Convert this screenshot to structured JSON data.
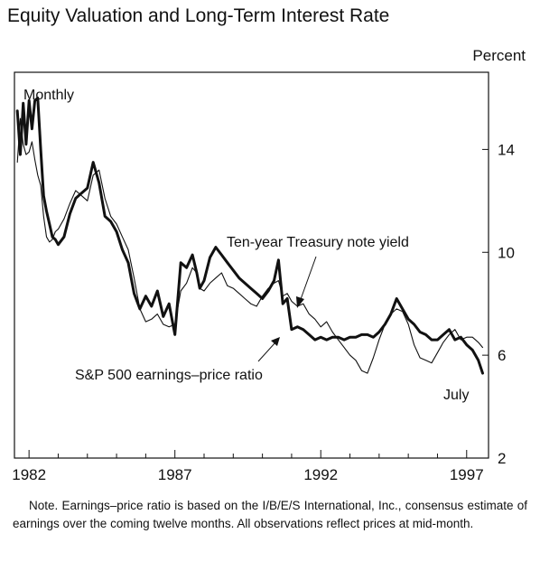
{
  "chart_data": {
    "type": "line",
    "title": "Equity Valuation and Long-Term Interest Rate",
    "unit_label": "Percent",
    "frequency_label": "Monthly",
    "x_ticks": [
      "1982",
      "1987",
      "1992",
      "1997"
    ],
    "xlim": [
      1981.5,
      1997.75
    ],
    "ylim": [
      2,
      17
    ],
    "y_ticks": [
      2,
      6,
      10,
      14
    ],
    "y_axis_position": "right",
    "grid": false,
    "legend": "inline annotations",
    "annotations": {
      "treasury": "Ten-year Treasury note yield",
      "ep_ratio": "S&P 500 earnings–price ratio",
      "end": "July"
    },
    "series": [
      {
        "name": "S&P 500 earnings–price ratio",
        "stroke": "thick",
        "x": [
          1981.6,
          1981.7,
          1981.8,
          1981.9,
          1982.0,
          1982.1,
          1982.2,
          1982.3,
          1982.4,
          1982.5,
          1982.6,
          1982.7,
          1982.8,
          1982.9,
          1983.0,
          1983.2,
          1983.4,
          1983.6,
          1983.8,
          1984.0,
          1984.2,
          1984.4,
          1984.6,
          1984.8,
          1985.0,
          1985.2,
          1985.4,
          1985.6,
          1985.8,
          1986.0,
          1986.2,
          1986.4,
          1986.6,
          1986.8,
          1987.0,
          1987.2,
          1987.4,
          1987.6,
          1987.75,
          1987.85,
          1988.0,
          1988.2,
          1988.4,
          1988.6,
          1988.8,
          1989.0,
          1989.2,
          1989.4,
          1989.6,
          1989.8,
          1990.0,
          1990.2,
          1990.4,
          1990.55,
          1990.7,
          1990.85,
          1991.0,
          1991.2,
          1991.4,
          1991.6,
          1991.8,
          1992.0,
          1992.2,
          1992.4,
          1992.6,
          1992.8,
          1993.0,
          1993.2,
          1993.4,
          1993.6,
          1993.8,
          1994.0,
          1994.2,
          1994.4,
          1994.6,
          1994.8,
          1995.0,
          1995.2,
          1995.4,
          1995.6,
          1995.8,
          1996.0,
          1996.2,
          1996.4,
          1996.6,
          1996.8,
          1997.0,
          1997.2,
          1997.4,
          1997.55
        ],
        "y": [
          15.5,
          13.8,
          15.8,
          14.2,
          15.9,
          14.8,
          15.9,
          16.0,
          14.0,
          12.2,
          11.6,
          11.1,
          10.6,
          10.5,
          10.3,
          10.6,
          11.5,
          12.1,
          12.3,
          12.5,
          13.5,
          12.7,
          11.4,
          11.2,
          10.8,
          10.1,
          9.6,
          8.4,
          7.8,
          8.3,
          7.9,
          8.5,
          7.5,
          8.0,
          6.8,
          9.6,
          9.4,
          9.9,
          9.2,
          8.6,
          8.9,
          9.8,
          10.2,
          9.9,
          9.6,
          9.3,
          9.0,
          8.8,
          8.6,
          8.4,
          8.2,
          8.5,
          8.9,
          9.7,
          8.0,
          8.2,
          7.0,
          7.1,
          7.0,
          6.8,
          6.6,
          6.7,
          6.6,
          6.7,
          6.7,
          6.6,
          6.7,
          6.7,
          6.8,
          6.8,
          6.7,
          6.9,
          7.2,
          7.6,
          8.2,
          7.8,
          7.4,
          7.2,
          6.9,
          6.8,
          6.6,
          6.6,
          6.8,
          7.0,
          6.6,
          6.7,
          6.4,
          6.2,
          5.8,
          5.3
        ]
      },
      {
        "name": "Ten-year Treasury note yield",
        "stroke": "thin",
        "x": [
          1981.6,
          1981.7,
          1981.8,
          1981.9,
          1982.0,
          1982.1,
          1982.2,
          1982.3,
          1982.4,
          1982.5,
          1982.6,
          1982.7,
          1982.8,
          1982.9,
          1983.0,
          1983.2,
          1983.4,
          1983.6,
          1983.8,
          1984.0,
          1984.2,
          1984.4,
          1984.6,
          1984.8,
          1985.0,
          1985.2,
          1985.4,
          1985.6,
          1985.8,
          1986.0,
          1986.2,
          1986.4,
          1986.6,
          1986.8,
          1987.0,
          1987.2,
          1987.4,
          1987.6,
          1987.75,
          1987.85,
          1988.0,
          1988.2,
          1988.4,
          1988.6,
          1988.8,
          1989.0,
          1989.2,
          1989.4,
          1989.6,
          1989.8,
          1990.0,
          1990.2,
          1990.4,
          1990.55,
          1990.7,
          1990.85,
          1991.0,
          1991.2,
          1991.4,
          1991.6,
          1991.8,
          1992.0,
          1992.2,
          1992.4,
          1992.6,
          1992.8,
          1993.0,
          1993.2,
          1993.4,
          1993.6,
          1993.8,
          1994.0,
          1994.2,
          1994.4,
          1994.6,
          1994.8,
          1995.0,
          1995.2,
          1995.4,
          1995.6,
          1995.8,
          1996.0,
          1996.2,
          1996.4,
          1996.6,
          1996.8,
          1997.0,
          1997.2,
          1997.4,
          1997.55
        ],
        "y": [
          13.5,
          15.2,
          14.2,
          13.8,
          13.9,
          14.3,
          13.6,
          13.0,
          12.6,
          11.4,
          10.6,
          10.4,
          10.5,
          10.8,
          10.9,
          11.3,
          11.9,
          12.4,
          12.2,
          12.0,
          13.0,
          13.2,
          12.1,
          11.4,
          11.1,
          10.6,
          10.1,
          9.0,
          7.8,
          7.3,
          7.4,
          7.6,
          7.2,
          7.1,
          7.2,
          8.5,
          8.8,
          9.4,
          9.2,
          8.6,
          8.5,
          8.8,
          9.0,
          9.2,
          8.7,
          8.6,
          8.4,
          8.2,
          8.0,
          7.9,
          8.3,
          8.6,
          8.8,
          8.9,
          8.3,
          8.4,
          8.1,
          7.9,
          8.0,
          7.6,
          7.4,
          7.1,
          7.3,
          6.9,
          6.6,
          6.3,
          6.0,
          5.8,
          5.4,
          5.3,
          5.9,
          6.6,
          7.2,
          7.6,
          7.8,
          7.7,
          7.2,
          6.4,
          5.9,
          5.8,
          5.7,
          6.1,
          6.5,
          6.8,
          7.0,
          6.6,
          6.7,
          6.7,
          6.5,
          6.3
        ]
      }
    ]
  },
  "note": "Note. Earnings–price ratio is based on the I/B/E/S International, Inc., consensus estimate of earnings over the coming twelve months. All observations reflect prices at mid-month."
}
